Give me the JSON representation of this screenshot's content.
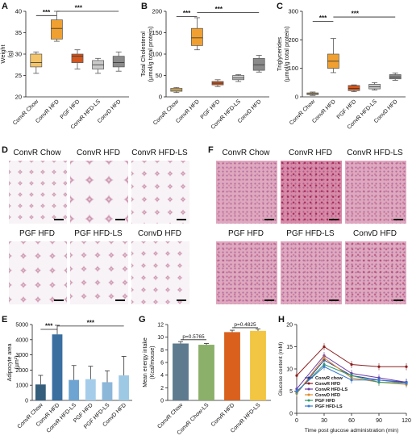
{
  "panels": {
    "A": {
      "label": "A"
    },
    "B": {
      "label": "B"
    },
    "C": {
      "label": "C"
    },
    "D": {
      "label": "D"
    },
    "E": {
      "label": "E"
    },
    "F": {
      "label": "F"
    },
    "G": {
      "label": "G"
    },
    "H": {
      "label": "H"
    }
  },
  "colors": {
    "chow": "#f3c46a",
    "hfd": "#f0a030",
    "pgf": "#d2561e",
    "hfdls": "#c9c9c9",
    "convd": "#8a8a8a",
    "e_bars": [
      "#355e7c",
      "#3a6fa0",
      "#6ea4d1",
      "#a5cdea",
      "#8db7d9",
      "#9ec9e4"
    ],
    "g_bars": [
      "#5e7a8e",
      "#8bb06a",
      "#d9611d",
      "#f2c542"
    ]
  },
  "histology_D": {
    "titles": [
      "ConvR Chow",
      "ConvR HFD",
      "ConvR HFD-LS",
      "PGF HFD",
      "PGF HFD-LS",
      "ConvD HFD"
    ]
  },
  "histology_F": {
    "titles": [
      "ConvR Chow",
      "ConvR HFD",
      "ConvR HFD-LS",
      "PGF HFD",
      "PGF HFD-LS",
      "ConvD HFD"
    ]
  },
  "chart_data": [
    {
      "id": "A",
      "type": "box",
      "ylabel": "Weight (g)",
      "ylim": [
        20,
        40
      ],
      "yticks": [
        20,
        25,
        30,
        35,
        40
      ],
      "categories": [
        "ConvR Chow",
        "ConvR HFD",
        "PGF HFD",
        "ConvR HFD-LS",
        "ConvD HFD"
      ],
      "boxes": [
        {
          "min": 25.5,
          "q1": 27,
          "median": 28,
          "q3": 30,
          "max": 30.5
        },
        {
          "min": 33,
          "q1": 33.5,
          "median": 36,
          "q3": 38,
          "max": 40
        },
        {
          "min": 26.5,
          "q1": 28,
          "median": 29.5,
          "q3": 30,
          "max": 31
        },
        {
          "min": 25.5,
          "q1": 26.5,
          "median": 27.5,
          "q3": 28.5,
          "max": 29
        },
        {
          "min": 26,
          "q1": 27,
          "median": 28,
          "q3": 29.5,
          "max": 30.5
        }
      ],
      "significance": [
        {
          "from": 0,
          "to": 1,
          "label": "***",
          "y": 39
        },
        {
          "from": 1,
          "to": 4,
          "label": "***",
          "y": 40
        }
      ]
    },
    {
      "id": "B",
      "type": "box",
      "ylabel": "Total Cholesterol (µmol/g total protein)",
      "ylim": [
        0,
        200
      ],
      "yticks": [
        0,
        50,
        100,
        150,
        200
      ],
      "categories": [
        "ConvR Chow",
        "ConvR HFD",
        "PGF HFD",
        "ConvR HFD-LS",
        "ConvD HFD"
      ],
      "boxes": [
        {
          "min": 10,
          "q1": 13,
          "median": 16,
          "q3": 20,
          "max": 22
        },
        {
          "min": 110,
          "q1": 120,
          "median": 138,
          "q3": 160,
          "max": 185
        },
        {
          "min": 24,
          "q1": 28,
          "median": 32,
          "q3": 36,
          "max": 40
        },
        {
          "min": 36,
          "q1": 40,
          "median": 44,
          "q3": 50,
          "max": 52
        },
        {
          "min": 58,
          "q1": 62,
          "median": 75,
          "q3": 90,
          "max": 97
        }
      ],
      "significance": [
        {
          "from": 0,
          "to": 1,
          "label": "***",
          "y": 188
        },
        {
          "from": 1,
          "to": 4,
          "label": "***",
          "y": 197
        }
      ]
    },
    {
      "id": "C",
      "type": "box",
      "ylabel": "Triglycerides (µmol/g total protein)",
      "ylim": [
        0,
        300
      ],
      "yticks": [
        0,
        100,
        200,
        300
      ],
      "categories": [
        "ConvR Chow",
        "ConvR HFD",
        "PGF HFD",
        "ConvR HFD-LS",
        "ConvD HFD"
      ],
      "boxes": [
        {
          "min": 5,
          "q1": 8,
          "median": 11,
          "q3": 14,
          "max": 17
        },
        {
          "min": 85,
          "q1": 100,
          "median": 125,
          "q3": 150,
          "max": 205
        },
        {
          "min": 18,
          "q1": 22,
          "median": 30,
          "q3": 40,
          "max": 42
        },
        {
          "min": 24,
          "q1": 28,
          "median": 35,
          "q3": 44,
          "max": 50
        },
        {
          "min": 58,
          "q1": 63,
          "median": 70,
          "q3": 78,
          "max": 84
        }
      ],
      "significance": [
        {
          "from": 0,
          "to": 1,
          "label": "***",
          "y": 265
        },
        {
          "from": 1,
          "to": 4,
          "label": "***",
          "y": 280
        }
      ]
    },
    {
      "id": "E",
      "type": "bar",
      "ylabel": "Adipocyte area (µm²)",
      "ylim": [
        0,
        5000
      ],
      "yticks": [
        0,
        1000,
        2000,
        3000,
        4000,
        5000
      ],
      "categories": [
        "ConvR Chow",
        "ConvR HFD",
        "ConvR HFD-LS",
        "PGF HFD",
        "PGF HFD-LS",
        "ConvD HFD"
      ],
      "values": [
        1050,
        4350,
        1350,
        1400,
        1200,
        1650
      ],
      "errors": [
        600,
        600,
        950,
        850,
        750,
        1250
      ],
      "significance": [
        {
          "from": 0,
          "to": 1,
          "label": "***",
          "y": 4680
        },
        {
          "from": 1,
          "to": 5,
          "label": "***",
          "y": 4900
        }
      ]
    },
    {
      "id": "G",
      "type": "bar",
      "ylabel": "Mean energy intake (Kcal/mouse)",
      "ylim": [
        0,
        12
      ],
      "yticks": [
        0,
        2,
        4,
        6,
        8,
        10,
        12
      ],
      "categories": [
        "ConvR Chow",
        "ConvR Chow-LS",
        "ConvR HFD",
        "ConvR HFD-LS"
      ],
      "values": [
        9.0,
        8.8,
        10.8,
        11.0
      ],
      "errors": [
        0.3,
        0.2,
        0.3,
        0.3
      ],
      "pvalues": [
        {
          "from": 0,
          "to": 1,
          "label": "p=0.5765",
          "y": 9.6
        },
        {
          "from": 2,
          "to": 3,
          "label": "p=0.4825",
          "y": 11.5
        }
      ]
    },
    {
      "id": "H",
      "type": "line",
      "xlabel": "Time post glucose administration (min)",
      "ylabel": "Glucose content (mM)",
      "xlim": [
        0,
        120
      ],
      "ylim": [
        0,
        20
      ],
      "xticks": [
        0,
        30,
        60,
        90,
        120
      ],
      "yticks": [
        0,
        5,
        10,
        15,
        20
      ],
      "x": [
        0,
        30,
        60,
        90,
        120
      ],
      "series": [
        {
          "name": "ConvR chow",
          "color": "#2a3b9c",
          "values": [
            4.5,
            12.0,
            8.5,
            7.5,
            7.0
          ]
        },
        {
          "name": "ConvR HFD",
          "color": "#8b2020",
          "values": [
            8.5,
            15.0,
            11.0,
            10.5,
            10.5
          ]
        },
        {
          "name": "ConvR HFD-LS",
          "color": "#6a3aa8",
          "values": [
            5.5,
            13.0,
            9.0,
            8.0,
            7.0
          ]
        },
        {
          "name": "ConvD HFD",
          "color": "#e08a2a",
          "values": [
            4.5,
            12.5,
            8.0,
            7.0,
            6.5
          ]
        },
        {
          "name": "PGF HFD",
          "color": "#2f9a6a",
          "values": [
            4.8,
            11.0,
            8.5,
            7.0,
            6.8
          ]
        },
        {
          "name": "PGF HFD-LS",
          "color": "#3a7ad0",
          "values": [
            5.0,
            10.5,
            7.5,
            7.5,
            6.8
          ]
        }
      ]
    }
  ]
}
